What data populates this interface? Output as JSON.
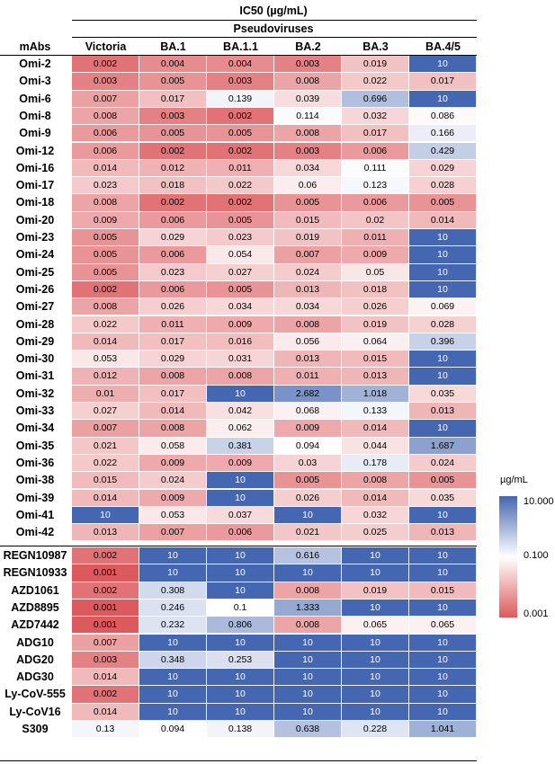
{
  "header": {
    "title": "IC50 (µg/mL)",
    "subtitle": "Pseudoviruses",
    "row_header": "mAbs"
  },
  "colorbar": {
    "title": "µg/mL",
    "ticks": [
      "10.000",
      "0.100",
      "0.001"
    ],
    "colors": {
      "high": "#4566b0",
      "mid": "#ffffff",
      "low": "#dc5a5e"
    }
  },
  "chart_data": {
    "type": "heatmap",
    "title": "IC50 (µg/mL)",
    "columns": [
      "Victoria",
      "BA.1",
      "BA.1.1",
      "BA.2",
      "BA.3",
      "BA.4/5"
    ],
    "color_scale": {
      "type": "log",
      "min": 0.001,
      "mid": 0.1,
      "max": 10
    },
    "groups": [
      {
        "rows": [
          {
            "name": "Omi-2",
            "values": [
              "0.002",
              "0.004",
              "0.004",
              "0.003",
              "0.019",
              "10"
            ]
          },
          {
            "name": "Omi-3",
            "values": [
              "0.003",
              "0.005",
              "0.003",
              "0.008",
              "0.022",
              "0.017"
            ]
          },
          {
            "name": "Omi-6",
            "values": [
              "0.007",
              "0.017",
              "0.139",
              "0.039",
              "0.696",
              "10"
            ]
          },
          {
            "name": "Omi-8",
            "values": [
              "0.008",
              "0.003",
              "0.002",
              "0.114",
              "0.032",
              "0.086"
            ]
          },
          {
            "name": "Omi-9",
            "values": [
              "0.006",
              "0.005",
              "0.005",
              "0.008",
              "0.017",
              "0.166"
            ]
          },
          {
            "name": "Omi-12",
            "values": [
              "0.006",
              "0.002",
              "0.002",
              "0.003",
              "0.006",
              "0.429"
            ]
          },
          {
            "name": "Omi-16",
            "values": [
              "0.014",
              "0.012",
              "0.011",
              "0.034",
              "0.111",
              "0.029"
            ]
          },
          {
            "name": "Omi-17",
            "values": [
              "0.023",
              "0.018",
              "0.022",
              "0.06",
              "0.123",
              "0.028"
            ]
          },
          {
            "name": "Omi-18",
            "values": [
              "0.008",
              "0.002",
              "0.002",
              "0.005",
              "0.006",
              "0.005"
            ]
          },
          {
            "name": "Omi-20",
            "values": [
              "0.009",
              "0.006",
              "0.005",
              "0.015",
              "0.02",
              "0.014"
            ]
          },
          {
            "name": "Omi-23",
            "values": [
              "0.005",
              "0.029",
              "0.023",
              "0.019",
              "0.011",
              "10"
            ]
          },
          {
            "name": "Omi-24",
            "values": [
              "0.005",
              "0.006",
              "0.054",
              "0.007",
              "0.009",
              "10"
            ]
          },
          {
            "name": "Omi-25",
            "values": [
              "0.005",
              "0.023",
              "0.027",
              "0.024",
              "0.05",
              "10"
            ]
          },
          {
            "name": "Omi-26",
            "values": [
              "0.002",
              "0.006",
              "0.005",
              "0.013",
              "0.018",
              "10"
            ]
          },
          {
            "name": "Omi-27",
            "values": [
              "0.008",
              "0.026",
              "0.034",
              "0.034",
              "0.026",
              "0.069"
            ]
          },
          {
            "name": "Omi-28",
            "values": [
              "0.022",
              "0.011",
              "0.009",
              "0.008",
              "0.019",
              "0.028"
            ]
          },
          {
            "name": "Omi-29",
            "values": [
              "0.014",
              "0.017",
              "0.016",
              "0.056",
              "0.064",
              "0.396"
            ]
          },
          {
            "name": "Omi-30",
            "values": [
              "0.053",
              "0.029",
              "0.031",
              "0.013",
              "0.015",
              "10"
            ]
          },
          {
            "name": "Omi-31",
            "values": [
              "0.012",
              "0.008",
              "0.008",
              "0.011",
              "0.013",
              "10"
            ]
          },
          {
            "name": "Omi-32",
            "values": [
              "0.01",
              "0.017",
              "10",
              "2.682",
              "1.018",
              "0.035"
            ]
          },
          {
            "name": "Omi-33",
            "values": [
              "0.027",
              "0.014",
              "0.042",
              "0.068",
              "0.133",
              "0.013"
            ]
          },
          {
            "name": "Omi-34",
            "values": [
              "0.007",
              "0.008",
              "0.062",
              "0.009",
              "0.014",
              "10"
            ]
          },
          {
            "name": "Omi-35",
            "values": [
              "0.021",
              "0.058",
              "0.381",
              "0.094",
              "0.044",
              "1.687"
            ]
          },
          {
            "name": "Omi-36",
            "values": [
              "0.022",
              "0.009",
              "0.009",
              "0.03",
              "0.178",
              "0.024"
            ]
          },
          {
            "name": "Omi-38",
            "values": [
              "0.015",
              "0.024",
              "10",
              "0.005",
              "0.008",
              "0.005"
            ]
          },
          {
            "name": "Omi-39",
            "values": [
              "0.014",
              "0.009",
              "10",
              "0.026",
              "0.014",
              "0.035"
            ]
          },
          {
            "name": "Omi-41",
            "values": [
              "10",
              "0.053",
              "0.037",
              "10",
              "0.032",
              "10"
            ]
          },
          {
            "name": "Omi-42",
            "values": [
              "0.013",
              "0.007",
              "0.006",
              "0.021",
              "0.025",
              "0.013"
            ]
          }
        ]
      },
      {
        "rows": [
          {
            "name": "REGN10987",
            "values": [
              "0.002",
              "10",
              "10",
              "0.616",
              "10",
              "10"
            ]
          },
          {
            "name": "REGN10933",
            "values": [
              "0.001",
              "10",
              "10",
              "10",
              "10",
              "10"
            ]
          },
          {
            "name": "AZD1061",
            "values": [
              "0.002",
              "0.308",
              "10",
              "0.008",
              "0.019",
              "0.015"
            ]
          },
          {
            "name": "AZD8895",
            "values": [
              "0.001",
              "0.246",
              "0.1",
              "1.333",
              "10",
              "10"
            ]
          },
          {
            "name": "AZD7442",
            "values": [
              "0.001",
              "0.232",
              "0.806",
              "0.008",
              "0.065",
              "0.065"
            ]
          },
          {
            "name": "ADG10",
            "values": [
              "0.007",
              "10",
              "10",
              "10",
              "10",
              "10"
            ]
          },
          {
            "name": "ADG20",
            "values": [
              "0.003",
              "0.348",
              "0.253",
              "10",
              "10",
              "10"
            ]
          },
          {
            "name": "ADG30",
            "values": [
              "0.014",
              "10",
              "10",
              "10",
              "10",
              "10"
            ]
          },
          {
            "name": "Ly-CoV-555",
            "values": [
              "0.002",
              "10",
              "10",
              "10",
              "10",
              "10"
            ]
          },
          {
            "name": "Ly-CoV16",
            "values": [
              "0.014",
              "10",
              "10",
              "10",
              "10",
              "10"
            ]
          },
          {
            "name": "S309",
            "values": [
              "0.13",
              "0.094",
              "0.138",
              "0.638",
              "0.228",
              "1.041"
            ]
          }
        ]
      }
    ]
  }
}
